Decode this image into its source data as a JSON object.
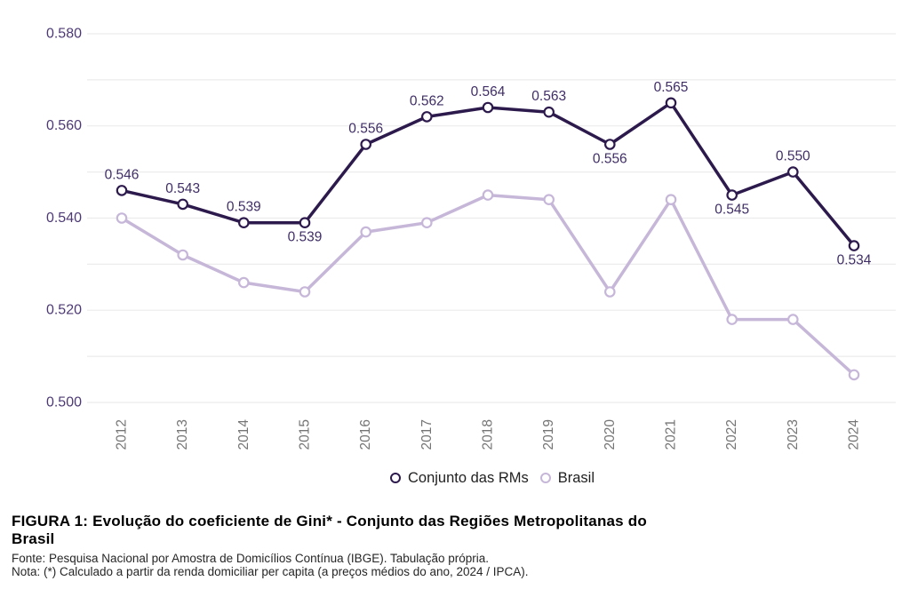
{
  "chart_data": {
    "type": "line",
    "title": "",
    "x": [
      "2012",
      "2013",
      "2014",
      "2015",
      "2016",
      "2017",
      "2018",
      "2019",
      "2020",
      "2021",
      "2022",
      "2023",
      "2024"
    ],
    "series": [
      {
        "name": "Conjunto das RMs",
        "color": "#2d1a4d",
        "marker": "circle-outline",
        "values": [
          0.546,
          0.543,
          0.539,
          0.539,
          0.556,
          0.562,
          0.564,
          0.563,
          0.556,
          0.565,
          0.545,
          0.55,
          0.534
        ],
        "show_point_labels": true,
        "point_label_position": [
          "above",
          "above",
          "above",
          "below",
          "above",
          "above",
          "above",
          "above",
          "below",
          "above",
          "below",
          "above",
          "below"
        ]
      },
      {
        "name": "Brasil",
        "color": "#c6b7d9",
        "marker": "circle-outline",
        "values": [
          0.54,
          0.532,
          0.526,
          0.524,
          0.537,
          0.539,
          0.545,
          0.544,
          0.524,
          0.544,
          0.518,
          0.518,
          0.506
        ],
        "show_point_labels": false,
        "point_label_position": []
      }
    ],
    "ylim": [
      0.5,
      0.58
    ],
    "yticks": [
      0.58,
      0.56,
      0.54,
      0.52,
      0.5
    ],
    "grid_step": 0.01,
    "grid": true,
    "legend_position": "bottom",
    "value_format_decimals": 3,
    "xlabel": "",
    "ylabel": ""
  },
  "caption": {
    "title_line1": "FIGURA 1: Evolução do coeficiente de Gini* - Conjunto das Regiões Metropolitanas do",
    "title_line2": "Brasil",
    "fonte": "Fonte: Pesquisa Nacional por Amostra de Domicílios Contínua (IBGE). Tabulação própria.",
    "nota": "Nota: (*) Calculado a partir da renda domiciliar per capita (a preços médios do ano, 2024 / IPCA)."
  },
  "colors": {
    "background": "#ffffff",
    "grid": "#ececec",
    "dark_series": "#2d1a4d",
    "light_series": "#c6b7d9",
    "point_label": "#3f2e66",
    "y_tick_label": "#4d3a75",
    "x_tick_label": "#757575",
    "legend_text": "#1f1f1f",
    "marker_fill": "#ffffff"
  }
}
